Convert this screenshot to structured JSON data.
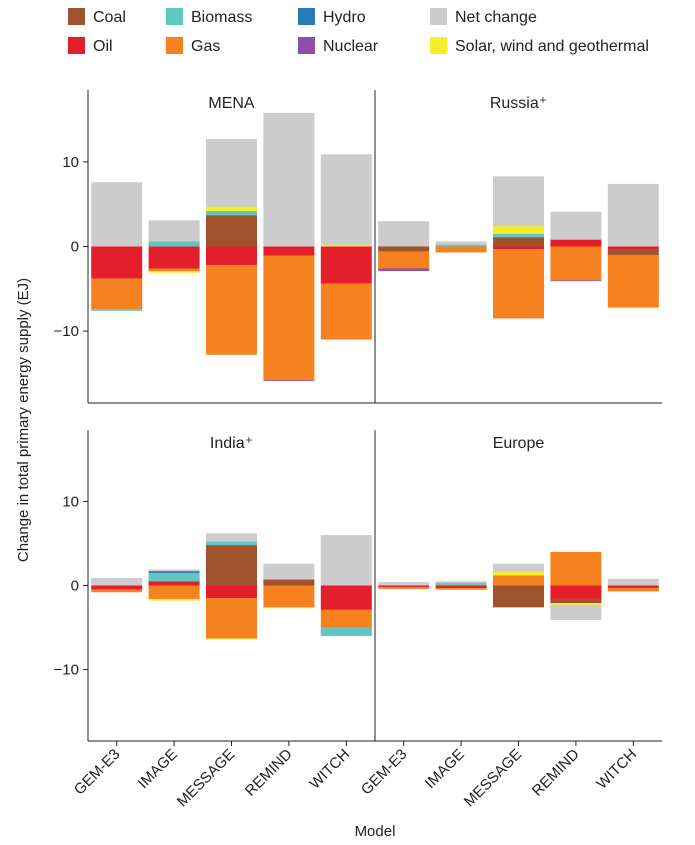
{
  "chart_data": {
    "type": "bar",
    "stacked": true,
    "xlabel": "Model",
    "ylabel": "Change in total primary energy supply (EJ)",
    "ylim": [
      -18.5,
      18.5
    ],
    "y_ticks": [
      -10,
      0,
      10
    ],
    "categories": [
      "GEM-E3",
      "IMAGE",
      "MESSAGE",
      "REMIND",
      "WITCH"
    ],
    "legend": [
      {
        "key": "coal",
        "label": "Coal",
        "color": "#a0522d"
      },
      {
        "key": "biomass",
        "label": "Biomass",
        "color": "#5fc6c0"
      },
      {
        "key": "hydro",
        "label": "Hydro",
        "color": "#2a7ab5"
      },
      {
        "key": "net",
        "label": "Net change",
        "color": "#cccccc"
      },
      {
        "key": "oil",
        "label": "Oil",
        "color": "#e41f2b"
      },
      {
        "key": "gas",
        "label": "Gas",
        "color": "#f5821f"
      },
      {
        "key": "nuclear",
        "label": "Nuclear",
        "color": "#8e4fa8"
      },
      {
        "key": "solar",
        "label": "Solar, wind and geothermal",
        "color": "#f5ee2a"
      }
    ],
    "panels": [
      {
        "title": "MENA",
        "bars": [
          {
            "category": "GEM-E3",
            "net": 7.6,
            "segments": [
              {
                "key": "oil",
                "value": -3.8
              },
              {
                "key": "gas",
                "value": -3.6
              },
              {
                "key": "biomass",
                "value": -0.2
              }
            ]
          },
          {
            "category": "IMAGE",
            "net": 3.1,
            "segments": [
              {
                "key": "biomass",
                "value": 0.6
              },
              {
                "key": "oil",
                "value": -2.6
              },
              {
                "key": "gas",
                "value": -0.3
              },
              {
                "key": "solar",
                "value": -0.2
              }
            ]
          },
          {
            "category": "MESSAGE",
            "net": 12.7,
            "segments": [
              {
                "key": "coal",
                "value": 3.7
              },
              {
                "key": "biomass",
                "value": 0.5
              },
              {
                "key": "solar",
                "value": 0.5
              },
              {
                "key": "oil",
                "value": -2.2
              },
              {
                "key": "gas",
                "value": -10.6
              }
            ]
          },
          {
            "category": "REMIND",
            "net": 15.8,
            "segments": [
              {
                "key": "oil",
                "value": -1.1
              },
              {
                "key": "gas",
                "value": -14.7
              },
              {
                "key": "nuclear",
                "value": -0.1
              }
            ]
          },
          {
            "category": "WITCH",
            "net": 10.9,
            "segments": [
              {
                "key": "solar",
                "value": 0.2
              },
              {
                "key": "oil",
                "value": -4.4
              },
              {
                "key": "gas",
                "value": -6.6
              }
            ]
          }
        ]
      },
      {
        "title": "Russia⁺",
        "bars": [
          {
            "category": "GEM-E3",
            "net": 3.0,
            "segments": [
              {
                "key": "coal",
                "value": -0.6
              },
              {
                "key": "gas",
                "value": -2.0
              },
              {
                "key": "nuclear",
                "value": -0.3
              }
            ]
          },
          {
            "category": "IMAGE",
            "net": 0.6,
            "segments": [
              {
                "key": "biomass",
                "value": 0.2
              },
              {
                "key": "gas",
                "value": -0.7
              }
            ]
          },
          {
            "category": "MESSAGE",
            "net": 8.3,
            "segments": [
              {
                "key": "coal",
                "value": 1.1
              },
              {
                "key": "biomass",
                "value": 0.4
              },
              {
                "key": "solar",
                "value": 0.9
              },
              {
                "key": "oil",
                "value": -0.3
              },
              {
                "key": "gas",
                "value": -8.2
              }
            ]
          },
          {
            "category": "REMIND",
            "net": 4.1,
            "segments": [
              {
                "key": "oil",
                "value": 0.8
              },
              {
                "key": "gas",
                "value": -4.0
              },
              {
                "key": "nuclear",
                "value": -0.1
              }
            ]
          },
          {
            "category": "WITCH",
            "net": 7.4,
            "segments": [
              {
                "key": "oil",
                "value": -0.3
              },
              {
                "key": "coal",
                "value": -0.7
              },
              {
                "key": "gas",
                "value": -6.2
              },
              {
                "key": "solar",
                "value": -0.1
              }
            ]
          }
        ]
      },
      {
        "title": "India⁺",
        "bars": [
          {
            "category": "GEM-E3",
            "net": 0.9,
            "segments": [
              {
                "key": "oil",
                "value": -0.5
              },
              {
                "key": "gas",
                "value": -0.3
              }
            ]
          },
          {
            "category": "IMAGE",
            "net": 1.9,
            "segments": [
              {
                "key": "oil",
                "value": 0.5
              },
              {
                "key": "biomass",
                "value": 1.0
              },
              {
                "key": "hydro",
                "value": 0.2
              },
              {
                "key": "gas",
                "value": -1.6
              },
              {
                "key": "solar",
                "value": -0.2
              }
            ]
          },
          {
            "category": "MESSAGE",
            "net": 6.2,
            "segments": [
              {
                "key": "coal",
                "value": 4.8
              },
              {
                "key": "biomass",
                "value": 0.4
              },
              {
                "key": "oil",
                "value": -1.5
              },
              {
                "key": "gas",
                "value": -4.8
              },
              {
                "key": "solar",
                "value": -0.1
              }
            ]
          },
          {
            "category": "REMIND",
            "net": 2.6,
            "segments": [
              {
                "key": "coal",
                "value": 0.7
              },
              {
                "key": "gas",
                "value": -2.6
              },
              {
                "key": "solar",
                "value": -0.1
              }
            ]
          },
          {
            "category": "WITCH",
            "net": 6.0,
            "segments": [
              {
                "key": "oil",
                "value": -2.9
              },
              {
                "key": "gas",
                "value": -2.1
              },
              {
                "key": "biomass",
                "value": -1.0
              }
            ]
          }
        ]
      },
      {
        "title": "Europe",
        "bars": [
          {
            "category": "GEM-E3",
            "net": 0.4,
            "segments": [
              {
                "key": "oil",
                "value": -0.2
              },
              {
                "key": "gas",
                "value": -0.2
              }
            ]
          },
          {
            "category": "IMAGE",
            "net": 0.5,
            "segments": [
              {
                "key": "biomass",
                "value": 0.3
              },
              {
                "key": "oil",
                "value": -0.3
              },
              {
                "key": "gas",
                "value": -0.2
              }
            ]
          },
          {
            "category": "MESSAGE",
            "net": 2.6,
            "segments": [
              {
                "key": "gas",
                "value": 1.2
              },
              {
                "key": "solar",
                "value": 0.4
              },
              {
                "key": "coal",
                "value": -2.6
              }
            ]
          },
          {
            "category": "REMIND",
            "net": -4.1,
            "segments": [
              {
                "key": "gas",
                "value": 4.0
              },
              {
                "key": "oil",
                "value": -1.6
              },
              {
                "key": "coal",
                "value": -0.5
              },
              {
                "key": "solar",
                "value": -0.2
              }
            ]
          },
          {
            "category": "WITCH",
            "net": 0.8,
            "segments": [
              {
                "key": "oil",
                "value": -0.3
              },
              {
                "key": "gas",
                "value": -0.4
              }
            ]
          }
        ]
      }
    ]
  }
}
